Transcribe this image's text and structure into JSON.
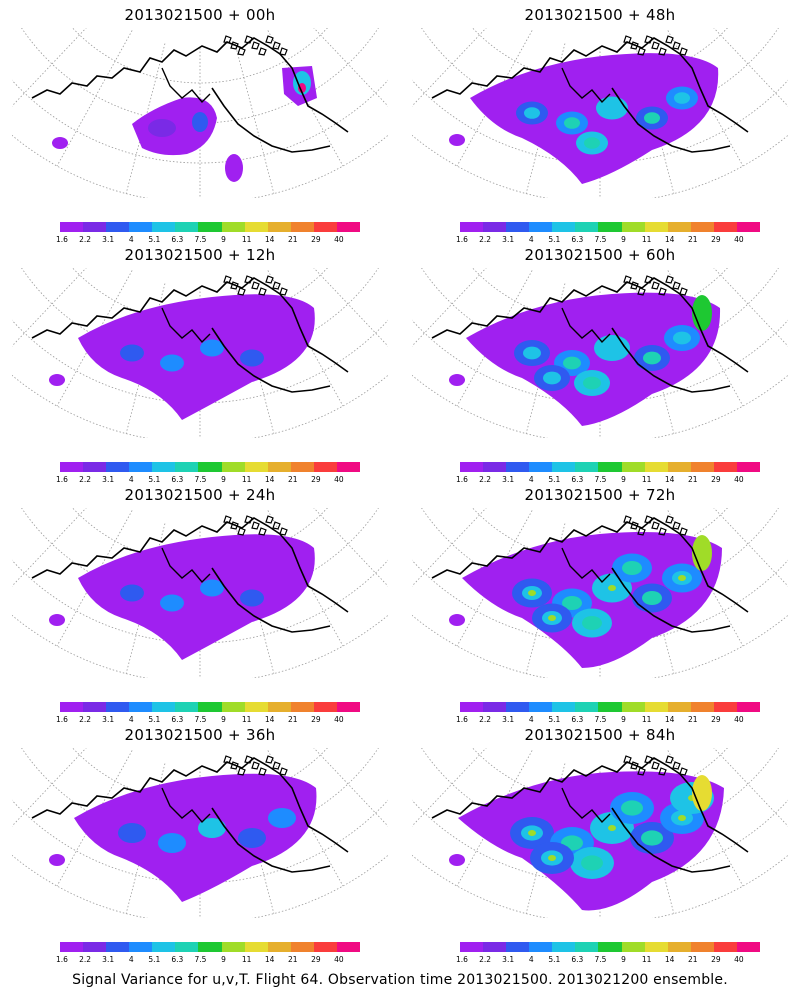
{
  "footer": "Signal Variance for u,v,T. Flight 64. Observation time 2013021500. 2013021200 ensemble.",
  "colorbar": {
    "ticks": [
      "1.6",
      "2.2",
      "3.1",
      "4",
      "5.1",
      "6.3",
      "7.5",
      "9",
      "11",
      "14",
      "21",
      "29",
      "40"
    ],
    "colors": [
      "#a020f0",
      "#7a2ae6",
      "#2f5af0",
      "#1e8cff",
      "#1ec3e6",
      "#1ed2b4",
      "#1ec832",
      "#a0dc28",
      "#e6dc32",
      "#e6af2d",
      "#f0822d",
      "#fa3c3c",
      "#f00a82"
    ]
  },
  "panels": [
    {
      "id": "p00",
      "title": "2013021500 + 00h",
      "col": 0,
      "row": 0,
      "level": 0
    },
    {
      "id": "p48",
      "title": "2013021500 + 48h",
      "col": 1,
      "row": 0,
      "level": 3
    },
    {
      "id": "p12",
      "title": "2013021500 + 12h",
      "col": 0,
      "row": 1,
      "level": 1
    },
    {
      "id": "p60",
      "title": "2013021500 + 60h",
      "col": 1,
      "row": 1,
      "level": 4
    },
    {
      "id": "p24",
      "title": "2013021500 + 24h",
      "col": 0,
      "row": 2,
      "level": 1
    },
    {
      "id": "p72",
      "title": "2013021500 + 72h",
      "col": 1,
      "row": 2,
      "level": 5
    },
    {
      "id": "p36",
      "title": "2013021500 + 36h",
      "col": 0,
      "row": 3,
      "level": 2
    },
    {
      "id": "p84",
      "title": "2013021500 + 84h",
      "col": 1,
      "row": 3,
      "level": 6
    }
  ]
}
